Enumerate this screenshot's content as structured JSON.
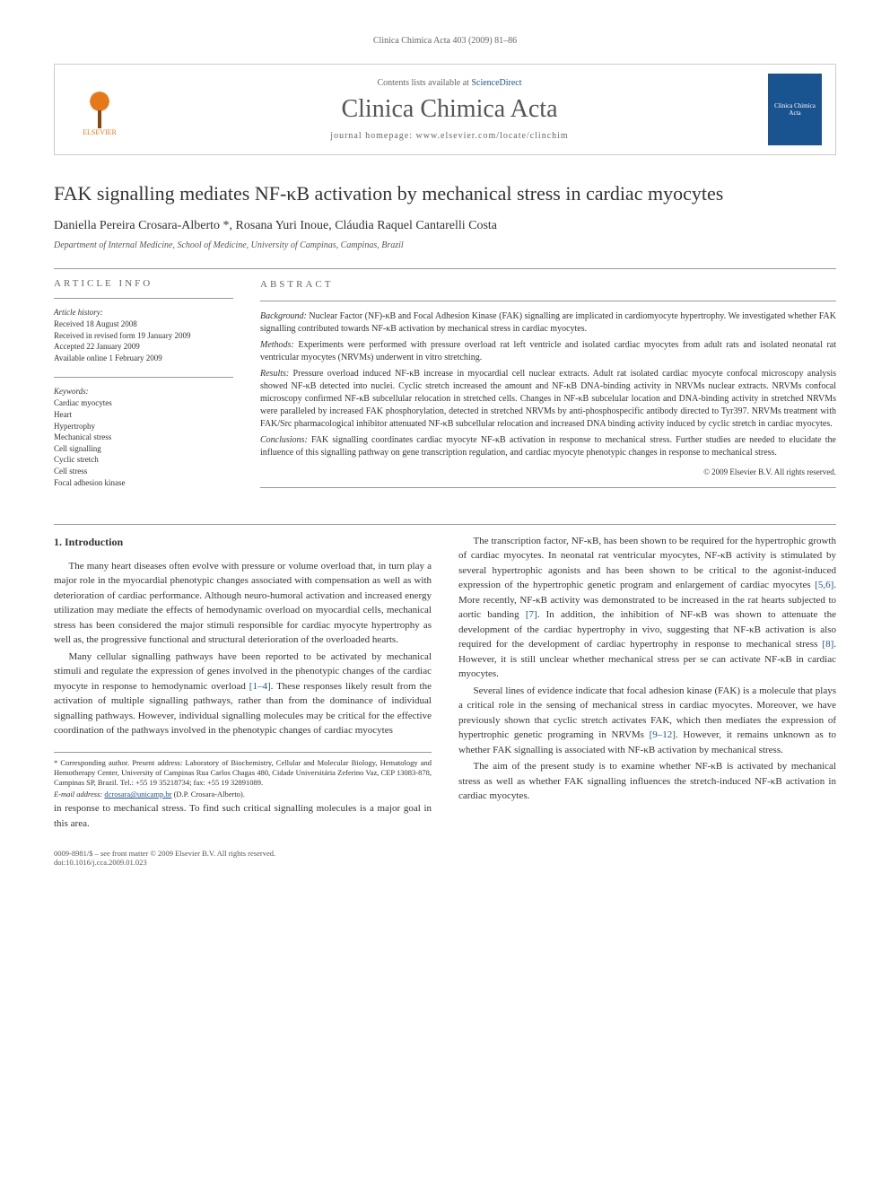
{
  "header": {
    "citation": "Clinica Chimica Acta 403 (2009) 81–86",
    "contents_prefix": "Contents lists available at ",
    "contents_link": "ScienceDirect",
    "journal_title": "Clinica Chimica Acta",
    "homepage_prefix": "journal homepage: ",
    "homepage_url": "www.elsevier.com/locate/clinchim",
    "publisher": "ELSEVIER",
    "cover_text": "Clinica Chimica Acta"
  },
  "article": {
    "title": "FAK signalling mediates NF-κB activation by mechanical stress in cardiac myocytes",
    "authors": "Daniella Pereira Crosara-Alberto *, Rosana Yuri Inoue, Cláudia Raquel Cantarelli Costa",
    "affiliation": "Department of Internal Medicine, School of Medicine, University of Campinas, Campinas, Brazil"
  },
  "info": {
    "heading": "ARTICLE INFO",
    "history_label": "Article history:",
    "received": "Received 18 August 2008",
    "revised": "Received in revised form 19 January 2009",
    "accepted": "Accepted 22 January 2009",
    "online": "Available online 1 February 2009",
    "keywords_label": "Keywords:",
    "keywords": [
      "Cardiac myocytes",
      "Heart",
      "Hypertrophy",
      "Mechanical stress",
      "Cell signalling",
      "Cyclic stretch",
      "Cell stress",
      "Focal adhesion kinase"
    ]
  },
  "abstract": {
    "heading": "ABSTRACT",
    "background_label": "Background:",
    "background": " Nuclear Factor (NF)-κB and Focal Adhesion Kinase (FAK) signalling are implicated in cardiomyocyte hypertrophy. We investigated whether FAK signalling contributed towards NF-κB activation by mechanical stress in cardiac myocytes.",
    "methods_label": "Methods:",
    "methods": " Experiments were performed with pressure overload rat left ventricle and isolated cardiac myocytes from adult rats and isolated neonatal rat ventricular myocytes (NRVMs) underwent in vitro stretching.",
    "results_label": "Results:",
    "results": " Pressure overload induced NF-κB increase in myocardial cell nuclear extracts. Adult rat isolated cardiac myocyte confocal microscopy analysis showed NF-κB detected into nuclei. Cyclic stretch increased the amount and NF-κB DNA-binding activity in NRVMs nuclear extracts. NRVMs confocal microscopy confirmed NF-κB subcellular relocation in stretched cells. Changes in NF-κB subcelular location and DNA-binding activity in stretched NRVMs were paralleled by increased FAK phosphorylation, detected in stretched NRVMs by anti-phosphospecific antibody directed to Tyr397. NRVMs treatment with FAK/Src pharmacological inhibitor attenuated NF-κB subcellular relocation and increased DNA binding activity induced by cyclic stretch in cardiac myocytes.",
    "conclusions_label": "Conclusions:",
    "conclusions": " FAK signalling coordinates cardiac myocyte NF-κB activation in response to mechanical stress. Further studies are needed to elucidate the influence of this signalling pathway on gene transcription regulation, and cardiac myocyte phenotypic changes in response to mechanical stress.",
    "copyright": "© 2009 Elsevier B.V. All rights reserved."
  },
  "body": {
    "section_heading": "1. Introduction",
    "p1": "The many heart diseases often evolve with pressure or volume overload that, in turn play a major role in the myocardial phenotypic changes associated with compensation as well as with deterioration of cardiac performance. Although neuro-humoral activation and increased energy utilization may mediate the effects of hemodynamic overload on myocardial cells, mechanical stress has been considered the major stimuli responsible for cardiac myocyte hypertrophy as well as, the progressive functional and structural deterioration of the overloaded hearts.",
    "p2a": "Many cellular signalling pathways have been reported to be activated by mechanical stimuli and regulate the expression of genes involved in the phenotypic changes of the cardiac myocyte in response to hemodynamic overload ",
    "p2_ref": "[1–4]",
    "p2b": ". These responses likely result from the activation of multiple signalling pathways, rather than from the dominance of individual signalling pathways. However, individual signalling molecules may be critical for the effective coordination of the pathways involved in the phenotypic changes of cardiac myocytes",
    "p2c": " in response to mechanical stress. To find such critical signalling molecules is a major goal in this area.",
    "p3a": "The transcription factor, NF-κB, has been shown to be required for the hypertrophic growth of cardiac myocytes. In neonatal rat ventricular myocytes, NF-κB activity is stimulated by several hypertrophic agonists and has been shown to be critical to the agonist-induced expression of the hypertrophic genetic program and enlargement of cardiac myocytes ",
    "p3_ref1": "[5,6]",
    "p3b": ". More recently, NF-κB activity was demonstrated to be increased in the rat hearts subjected to aortic banding ",
    "p3_ref2": "[7]",
    "p3c": ". In addition, the inhibition of NF-κB was shown to attenuate the development of the cardiac hypertrophy in vivo, suggesting that NF-κB activation is also required for the development of cardiac hypertrophy in response to mechanical stress ",
    "p3_ref3": "[8]",
    "p3d": ". However, it is still unclear whether mechanical stress per se can activate NF-κB in cardiac myocytes.",
    "p4a": "Several lines of evidence indicate that focal adhesion kinase (FAK) is a molecule that plays a critical role in the sensing of mechanical stress in cardiac myocytes. Moreover, we have previously shown that cyclic stretch activates FAK, which then mediates the expression of hypertrophic genetic programing in NRVMs ",
    "p4_ref": "[9–12]",
    "p4b": ". However, it remains unknown as to whether FAK signalling is associated with NF-κB activation by mechanical stress.",
    "p5": "The aim of the present study is to examine whether NF-κB is activated by mechanical stress as well as whether FAK signalling influences the stretch-induced NF-κB activation in cardiac myocytes."
  },
  "footnote": {
    "corresponding": "* Corresponding author. Present address: Laboratory of Biochemistry, Cellular and Molecular Biology, Hematology and Hemotherapy Center, University of Campinas Rua Carlos Chagas 480, Cidade Universitária Zeferino Vaz, CEP 13083-878, Campinas SP, Brazil. Tel.: +55 19 35218734; fax: +55 19 32891089.",
    "email_label": "E-mail address: ",
    "email": "dcrosara@unicamp.br",
    "email_suffix": " (D.P. Crosara-Alberto)."
  },
  "footer": {
    "line1": "0009-8981/$ – see front matter © 2009 Elsevier B.V. All rights reserved.",
    "line2": "doi:10.1016/j.cca.2009.01.023"
  }
}
